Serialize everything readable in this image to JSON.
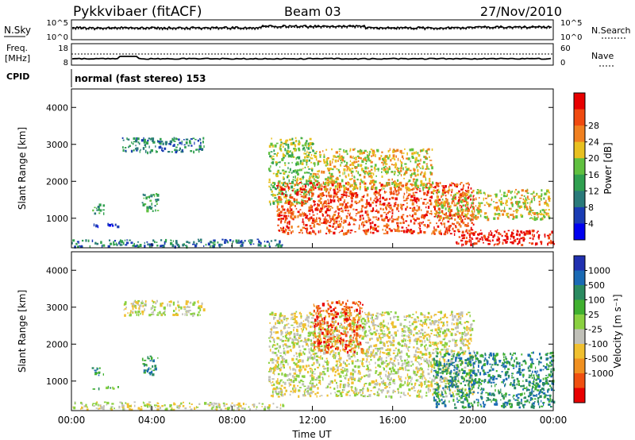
{
  "header": {
    "station": "Pykkvibaer (fitACF)",
    "beam": "Beam 03",
    "date": "27/Nov/2010"
  },
  "panels": {
    "nsky": {
      "label": "N.Sky",
      "ticks": [
        "10^5",
        "10^0"
      ],
      "right_label": "N.Search",
      "right_ticks": [
        "10^5",
        "10^0"
      ]
    },
    "freq": {
      "label_line1": "Freq.",
      "label_line2": "[MHz]",
      "ticks": [
        "18",
        "8"
      ],
      "right_label": "Nave",
      "right_ticks": [
        "60",
        "0"
      ]
    },
    "cpid": {
      "label": "CPID",
      "text": "normal (fast stereo) 153"
    }
  },
  "chart_data": [
    {
      "type": "heatmap",
      "title": "",
      "xlabel": "Time UT",
      "ylabel": "Slant Range [km]",
      "x_ticks": [
        "00:00",
        "04:00",
        "08:00",
        "12:00",
        "16:00",
        "20:00",
        "00:00"
      ],
      "xlim_hours": [
        0,
        24
      ],
      "ylim": [
        200,
        4500
      ],
      "y_ticks": [
        1000,
        2000,
        3000,
        4000
      ],
      "colorbar": {
        "label": "Power [dB]",
        "ticks": [
          "4",
          "8",
          "12",
          "16",
          "20",
          "24",
          "28"
        ],
        "colors": [
          "#0000f0",
          "#1a3cb4",
          "#2a7a7a",
          "#30a050",
          "#60c040",
          "#e8c020",
          "#f08020",
          "#f04a10",
          "#e80000"
        ]
      },
      "echo_regions": [
        {
          "t_start": 0.0,
          "t_end": 10.5,
          "range_km": [
            250,
            450
          ],
          "level": 2
        },
        {
          "t_start": 1.0,
          "t_end": 2.3,
          "range_km": [
            800,
            880
          ],
          "level": 1
        },
        {
          "t_start": 1.0,
          "t_end": 1.6,
          "range_km": [
            1150,
            1400
          ],
          "level": 3
        },
        {
          "t_start": 3.5,
          "t_end": 4.3,
          "range_km": [
            1200,
            1700
          ],
          "level": 3
        },
        {
          "t_start": 2.5,
          "t_end": 6.6,
          "range_km": [
            2800,
            3200
          ],
          "level": 2
        },
        {
          "t_start": 9.8,
          "t_end": 12.0,
          "range_km": [
            1400,
            3200
          ],
          "level": 4
        },
        {
          "t_start": 10.2,
          "t_end": 20.0,
          "range_km": [
            600,
            2000
          ],
          "level": 7
        },
        {
          "t_start": 12.0,
          "t_end": 18.0,
          "range_km": [
            1800,
            2900
          ],
          "level": 5
        },
        {
          "t_start": 18.0,
          "t_end": 23.8,
          "range_km": [
            1000,
            1800
          ],
          "level": 5
        },
        {
          "t_start": 19.0,
          "t_end": 24.0,
          "range_km": [
            300,
            700
          ],
          "level": 8
        }
      ]
    },
    {
      "type": "heatmap",
      "title": "",
      "xlabel": "Time UT",
      "ylabel": "Slant Range [km]",
      "x_ticks": [
        "00:00",
        "04:00",
        "08:00",
        "12:00",
        "16:00",
        "20:00",
        "00:00"
      ],
      "xlim_hours": [
        0,
        24
      ],
      "ylim": [
        200,
        4500
      ],
      "y_ticks": [
        1000,
        2000,
        3000,
        4000
      ],
      "colorbar": {
        "label": "Velocity [m s⁻¹]",
        "ticks": [
          "1000",
          "500",
          "100",
          "25",
          "-25",
          "-100",
          "-500",
          "-1000"
        ],
        "colors": [
          "#2030b0",
          "#1a6ab4",
          "#2a8a60",
          "#40b030",
          "#8ad040",
          "#c0c0b8",
          "#f0c030",
          "#f09020",
          "#f05010",
          "#e80000"
        ]
      },
      "echo_regions": [
        {
          "t_start": 0.0,
          "t_end": 10.5,
          "range_km": [
            250,
            450
          ],
          "level": 5
        },
        {
          "t_start": 1.0,
          "t_end": 2.3,
          "range_km": [
            800,
            880
          ],
          "level": 3
        },
        {
          "t_start": 1.0,
          "t_end": 1.6,
          "range_km": [
            1150,
            1400
          ],
          "level": 2
        },
        {
          "t_start": 3.5,
          "t_end": 4.3,
          "range_km": [
            1200,
            1700
          ],
          "level": 2
        },
        {
          "t_start": 2.5,
          "t_end": 6.6,
          "range_km": [
            2800,
            3200
          ],
          "level": 5
        },
        {
          "t_start": 9.8,
          "t_end": 20.0,
          "range_km": [
            600,
            2900
          ],
          "level": 5
        },
        {
          "t_start": 12.0,
          "t_end": 14.5,
          "range_km": [
            1800,
            3200
          ],
          "level": 8
        },
        {
          "t_start": 18.0,
          "t_end": 24.0,
          "range_km": [
            300,
            1800
          ],
          "level": 2
        }
      ]
    }
  ]
}
